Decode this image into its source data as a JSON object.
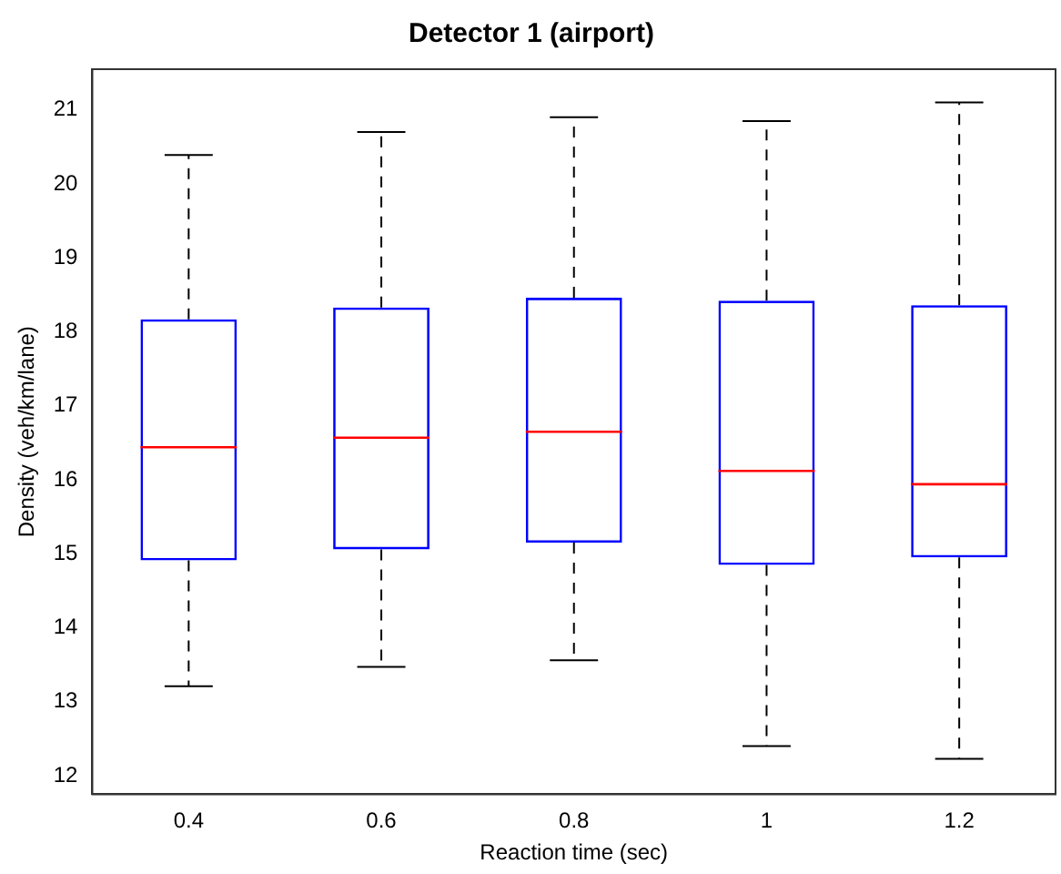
{
  "chart_data": {
    "type": "box",
    "title": "Detector 1 (airport)",
    "xlabel": "Reaction time (sec)",
    "ylabel": "Density (veh/km/lane)",
    "categories": [
      "0.4",
      "0.6",
      "0.8",
      "1",
      "1.2"
    ],
    "color": "#0000ff",
    "boxes": [
      {
        "low": 13.21,
        "q1": 14.91,
        "median": 16.44,
        "q3": 18.17,
        "high": 20.39
      },
      {
        "low": 13.47,
        "q1": 15.06,
        "median": 16.57,
        "q3": 18.33,
        "high": 20.7
      },
      {
        "low": 13.56,
        "q1": 15.15,
        "median": 16.65,
        "q3": 18.46,
        "high": 20.9
      },
      {
        "low": 12.4,
        "q1": 14.85,
        "median": 16.12,
        "q3": 18.42,
        "high": 20.85
      },
      {
        "low": 12.23,
        "q1": 14.95,
        "median": 15.94,
        "q3": 18.36,
        "high": 21.1
      }
    ],
    "ylim": [
      11.75,
      21.55
    ],
    "yticks": [
      12,
      13,
      14,
      15,
      16,
      17,
      18,
      19,
      20,
      21
    ],
    "grid": false
  }
}
